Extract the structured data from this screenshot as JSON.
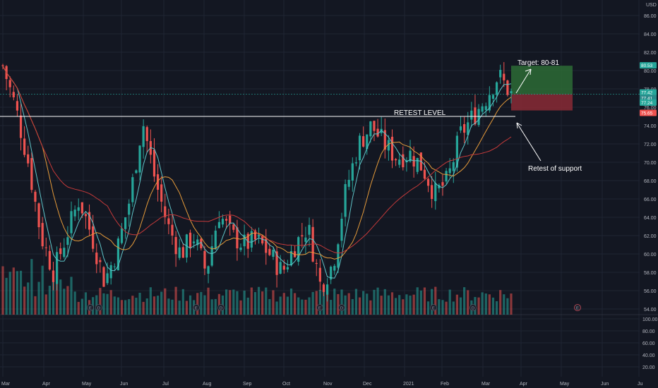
{
  "currency": "USD",
  "price_axis_labels": [
    "86.00",
    "84.00",
    "82.00",
    "80.00",
    "78.00",
    "76.00",
    "74.00",
    "72.00",
    "70.00",
    "68.00",
    "66.00",
    "64.00",
    "62.00",
    "60.00",
    "58.00",
    "56.00",
    "54.00"
  ],
  "volume_axis_labels": [
    "100.00",
    "80.00",
    "60.00",
    "40.00",
    "20.00"
  ],
  "time_labels": [
    "Mar",
    "Apr",
    "May",
    "Jun",
    "Jul",
    "Aug",
    "Sep",
    "Oct",
    "Nov",
    "Dec",
    "2021",
    "Feb",
    "Mar",
    "Apr",
    "May",
    "Jun",
    "Ju"
  ],
  "price_badges": [
    {
      "text": "80.53",
      "color": "#26a69a"
    },
    {
      "text": "77.42",
      "color": "#26a69a"
    },
    {
      "text": "77.41",
      "color": "#2a8a8a"
    },
    {
      "text": "77.24",
      "color": "#26a69a"
    },
    {
      "text": "75.65",
      "color": "#ef5350"
    }
  ],
  "annotations": {
    "retest_level": "RETEST LEVEL",
    "target": "Target: 80-81",
    "retest_support": "Retest of support"
  },
  "event_marker_letters": [
    "E",
    "D",
    "E",
    "D",
    "E",
    "D",
    "E",
    "D",
    "E"
  ],
  "colors": {
    "background": "#131722",
    "up": "#26a69a",
    "down": "#ef5350",
    "ma_fast": "#5fc4c8",
    "ma_mid": "#e69b3a",
    "ma_slow": "#c53a3a",
    "target_zone": "#2d6b35",
    "stop_zone": "#8a2a35",
    "line": "#ffffff"
  },
  "chart_data": {
    "type": "candlestick",
    "currency": "USD",
    "x": [
      "Mar",
      "Apr",
      "May",
      "Jun",
      "Jul",
      "Aug",
      "Sep",
      "Oct",
      "Nov",
      "Dec",
      "2021",
      "Feb",
      "Mar",
      "Apr",
      "May",
      "Jun"
    ],
    "approx_close_path": [
      {
        "x": "Mar",
        "y": 80.5
      },
      {
        "x": "Mar",
        "y": 76.0
      },
      {
        "x": "Mar",
        "y": 70.0
      },
      {
        "x": "Apr",
        "y": 62.0
      },
      {
        "x": "Apr",
        "y": 58.0
      },
      {
        "x": "Apr",
        "y": 62.0
      },
      {
        "x": "May",
        "y": 66.0
      },
      {
        "x": "May",
        "y": 62.0
      },
      {
        "x": "May",
        "y": 57.0
      },
      {
        "x": "Jun",
        "y": 60.5
      },
      {
        "x": "Jun",
        "y": 66.0
      },
      {
        "x": "Jun",
        "y": 74.5
      },
      {
        "x": "Jun",
        "y": 68.0
      },
      {
        "x": "Jul",
        "y": 63.0
      },
      {
        "x": "Jul",
        "y": 60.0
      },
      {
        "x": "Jul",
        "y": 62.0
      },
      {
        "x": "Aug",
        "y": 58.0
      },
      {
        "x": "Aug",
        "y": 64.5
      },
      {
        "x": "Aug",
        "y": 62.0
      },
      {
        "x": "Sep",
        "y": 61.0
      },
      {
        "x": "Sep",
        "y": 61.5
      },
      {
        "x": "Sep",
        "y": 60.0
      },
      {
        "x": "Oct",
        "y": 58.0
      },
      {
        "x": "Oct",
        "y": 61.0
      },
      {
        "x": "Oct",
        "y": 63.0
      },
      {
        "x": "Nov",
        "y": 56.5
      },
      {
        "x": "Nov",
        "y": 59.0
      },
      {
        "x": "Nov",
        "y": 67.0
      },
      {
        "x": "Nov",
        "y": 72.0
      },
      {
        "x": "Dec",
        "y": 74.0
      },
      {
        "x": "Dec",
        "y": 72.0
      },
      {
        "x": "Dec",
        "y": 70.5
      },
      {
        "x": "2021",
        "y": 71.0
      },
      {
        "x": "2021",
        "y": 69.5
      },
      {
        "x": "Feb",
        "y": 66.5
      },
      {
        "x": "Feb",
        "y": 68.0
      },
      {
        "x": "Feb",
        "y": 73.0
      },
      {
        "x": "Mar",
        "y": 75.0
      },
      {
        "x": "Mar",
        "y": 77.0
      },
      {
        "x": "Mar",
        "y": 79.5
      },
      {
        "x": "Mar",
        "y": 77.4
      }
    ],
    "horizontal_levels": [
      {
        "name": "RETEST LEVEL",
        "y": 75.0
      }
    ],
    "target_zone": {
      "from": 77.42,
      "to": 80.53
    },
    "stop_zone": {
      "from": 75.65,
      "to": 77.42
    },
    "ylim": [
      53.0,
      87.5
    ],
    "volume_axis": [
      20,
      100
    ],
    "grid": true,
    "series": [
      {
        "name": "price",
        "kind": "candles"
      },
      {
        "kind": "moving-average",
        "color": "#5fc4c8"
      },
      {
        "kind": "moving-average",
        "color": "#e69b3a"
      },
      {
        "kind": "moving-average",
        "color": "#c53a3a"
      }
    ]
  }
}
